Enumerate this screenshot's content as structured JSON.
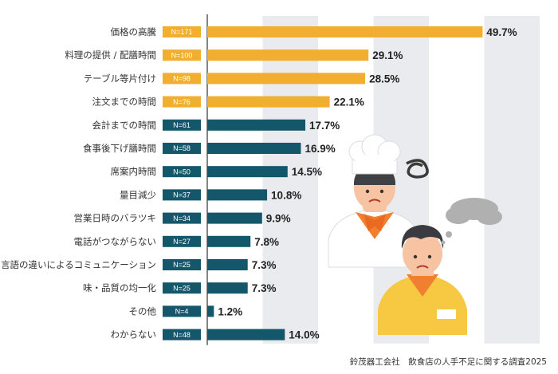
{
  "chart_data": {
    "type": "bar",
    "orientation": "horizontal",
    "categories": [
      "価格の高騰",
      "料理の提供 / 配膳時間",
      "テーブル等片付け",
      "注文までの時間",
      "会計までの時間",
      "食事後下げ膳時間",
      "席案内時間",
      "量目減少",
      "営業日時のバラツキ",
      "電話がつながらない",
      "言語の違いによるコミュニケーション",
      "味・品質の均一化",
      "その他",
      "わからない"
    ],
    "n_labels": [
      "N=171",
      "N=100",
      "N=98",
      "N=76",
      "N=61",
      "N=58",
      "N=50",
      "N=37",
      "N=34",
      "N=27",
      "N=25",
      "N=25",
      "N=4",
      "N=48"
    ],
    "values": [
      49.7,
      29.1,
      28.5,
      22.1,
      17.7,
      16.9,
      14.5,
      10.8,
      9.9,
      7.8,
      7.3,
      7.3,
      1.2,
      14.0
    ],
    "value_labels": [
      "49.7%",
      "29.1%",
      "28.5%",
      "22.1%",
      "17.7%",
      "16.9%",
      "14.5%",
      "10.8%",
      "9.9%",
      "7.8%",
      "7.3%",
      "7.3%",
      "1.2%",
      "14.0%"
    ],
    "highlight_count": 4,
    "xlim": [
      0,
      50
    ],
    "colors": {
      "highlight": "#f2ae2e",
      "normal": "#14576b",
      "band": "#e9ebee"
    }
  },
  "source": "鈴茂器工会社　飲食店の人手不足に関する調査2025"
}
